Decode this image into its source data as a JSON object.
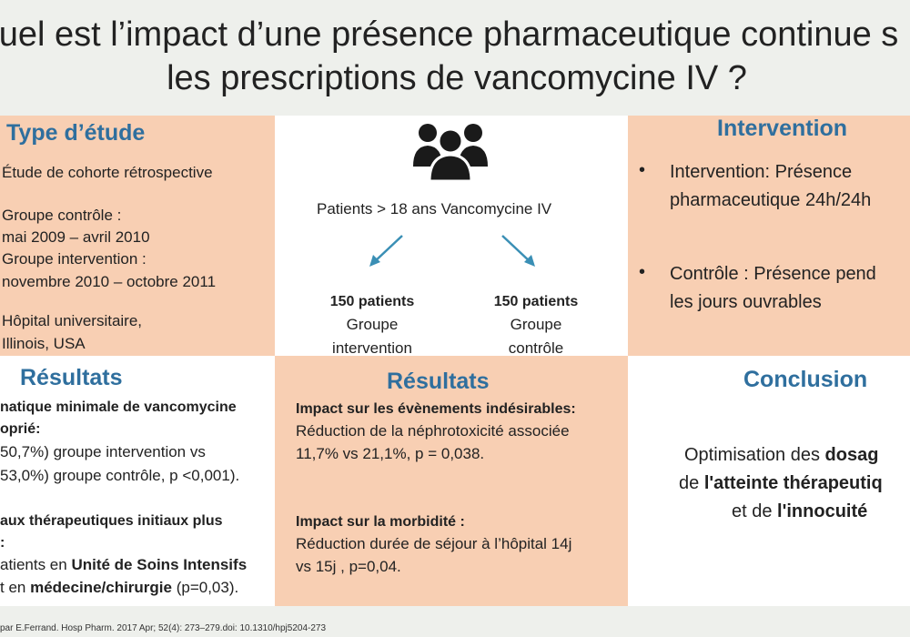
{
  "title": {
    "line1": "uel est l’impact d’une présence pharmaceutique continue s",
    "line2": "les prescriptions de vancomycine IV ?"
  },
  "study_type": {
    "heading": "Type d’étude",
    "cohort": "Étude de cohorte rétrospective",
    "control_label": "Groupe contrôle :",
    "control_dates": "mai 2009 – avril 2010",
    "intervention_label": "Groupe intervention :",
    "intervention_dates": "novembre 2010 – octobre 2011",
    "site_line1": "Hôpital universitaire,",
    "site_line2": "Illinois, USA"
  },
  "population": {
    "icon": "users-group-icon",
    "patients_text": "Patients > 18 ans Vancomycine IV",
    "left_count": "150 patients",
    "left_group_line1": "Groupe",
    "left_group_line2": "intervention",
    "right_count": "150 patients",
    "right_group_line1": "Groupe",
    "right_group_line2": "contrôle",
    "arrow_color": "#3a8fb5"
  },
  "intervention": {
    "heading": "Intervention",
    "item1_line1": "Intervention: Présence",
    "item1_line2": "pharmaceutique 24h/24h",
    "item2_line1": "Contrôle : Présence pend",
    "item2_line2": "les jours ouvrables"
  },
  "results_left": {
    "heading": "Résultats",
    "p1_line1": "natique  minimale  de  vancomycine",
    "p1_line2": "oprié:",
    "p1_line3": "50,7%)  groupe intervention  vs",
    "p1_line4": "53,0%) groupe contrôle, p <0,001).",
    "p2_line1": "aux  thérapeutiques  initiaux  plus",
    "p2_line2": ":",
    "p2_line3_pre": "atients   en ",
    "p2_line3_bold": "Unité de Soins Intensifs",
    "p2_line4_pre": "t en ",
    "p2_line4_bold": "médecine/chirurgie",
    "p2_line4_post": "   (p=0,03)."
  },
  "results_mid": {
    "heading": "Résultats",
    "s1_title": "Impact sur les évènements indésirables:",
    "s1_line1": "Réduction de la néphrotoxicité associée",
    "s1_line2": "11,7% vs 21,1%,  p = 0,038.",
    "s2_title": "Impact sur la morbidité  :",
    "s2_line1": "Réduction durée de séjour  à l’hôpital 14j",
    "s2_line2": "vs 15j , p=0,04."
  },
  "conclusion": {
    "heading": "Conclusion",
    "l1_pre": "Optimisation des ",
    "l1_bold": "dosag",
    "l2_pre": "de ",
    "l2_bold": "l'atteinte thérapeutiq",
    "l3_pre": "et de ",
    "l3_bold": "l'innocuité"
  },
  "footer": "par E.Ferrand. Hosp Pharm. 2017 Apr; 52(4): 273–279.doi:  10.1310/hpj5204-273"
}
